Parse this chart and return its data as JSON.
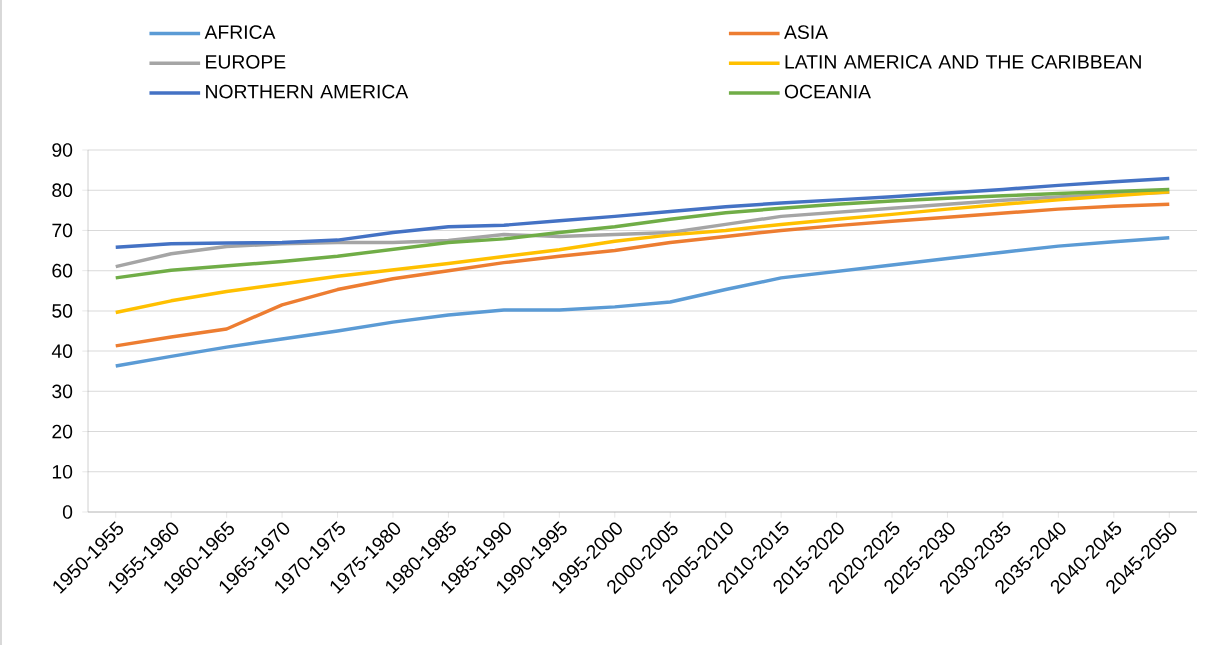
{
  "chart_data": {
    "type": "line",
    "categories": [
      "1950-1955",
      "1955-1960",
      "1960-1965",
      "1965-1970",
      "1970-1975",
      "1975-1980",
      "1980-1985",
      "1985-1990",
      "1990-1995",
      "1995-2000",
      "2000-2005",
      "2005-2010",
      "2010-2015",
      "2015-2020",
      "2020-2025",
      "2025-2030",
      "2030-2035",
      "2035-2040",
      "2040-2045",
      "2045-2050"
    ],
    "series": [
      {
        "name": "AFRICA",
        "color": "#5b9bd5",
        "values": [
          36.3,
          38.7,
          41,
          43,
          45,
          47.2,
          49,
          50.2,
          50.2,
          51,
          52.2,
          55.3,
          58.2,
          59.8,
          61.4,
          63,
          64.6,
          66.1,
          67.2,
          68.2
        ]
      },
      {
        "name": "ASIA",
        "color": "#ed7d31",
        "values": [
          41.3,
          43.5,
          45.5,
          51.5,
          55.3,
          58,
          60,
          62,
          63.6,
          65,
          67,
          68.5,
          70,
          71.2,
          72.3,
          73.3,
          74.3,
          75.3,
          76,
          76.5
        ]
      },
      {
        "name": "EUROPE",
        "color": "#a5a5a5",
        "values": [
          61,
          64.2,
          66,
          66.7,
          67,
          67,
          67.5,
          69,
          68.5,
          69,
          69.5,
          71.5,
          73.5,
          74.5,
          75.5,
          76.5,
          77.5,
          78.3,
          79,
          79.5
        ]
      },
      {
        "name": "LATIN AMERICA AND THE CARIBBEAN",
        "color": "#ffc000",
        "values": [
          49.6,
          52.5,
          54.8,
          56.7,
          58.6,
          60.2,
          61.8,
          63.5,
          65.2,
          67.3,
          68.9,
          70,
          71.5,
          72.8,
          74,
          75.3,
          76.5,
          77.6,
          78.6,
          79.6
        ]
      },
      {
        "name": "NORTHERN AMERICA",
        "color": "#4472c4",
        "values": [
          65.8,
          66.7,
          66.9,
          67,
          67.6,
          69.5,
          70.9,
          71.3,
          72.4,
          73.5,
          74.7,
          75.9,
          76.8,
          77.6,
          78.4,
          79.3,
          80.2,
          81.2,
          82.1,
          82.9
        ]
      },
      {
        "name": "OCEANIA",
        "color": "#70ad47",
        "values": [
          58.2,
          60.1,
          61.2,
          62.3,
          63.6,
          65.3,
          67,
          67.9,
          69.5,
          70.9,
          72.8,
          74.4,
          75.5,
          76.5,
          77.3,
          78,
          78.6,
          79.2,
          79.7,
          80.2
        ]
      }
    ],
    "ylim": [
      0,
      90
    ],
    "yticks": [
      0,
      10,
      20,
      30,
      40,
      50,
      60,
      70,
      80,
      90
    ],
    "grid": "y",
    "legend": "top",
    "marker": "none",
    "line_style": "solid"
  }
}
